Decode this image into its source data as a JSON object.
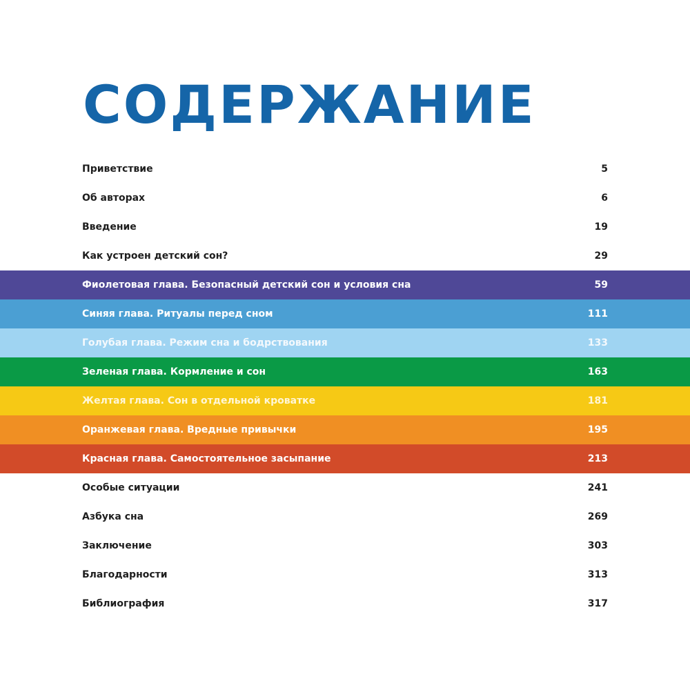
{
  "page": {
    "title": "СОДЕРЖАНИЕ",
    "title_color": "#1565a8",
    "background": "#ffffff"
  },
  "toc": {
    "entries": [
      {
        "label": "Приветствие",
        "page": "5"
      },
      {
        "label": "Об авторах",
        "page": "6"
      },
      {
        "label": "Введение",
        "page": "19"
      },
      {
        "label": "Как устроен детский сон?",
        "page": "29"
      },
      {
        "label": "Фиолетовая глава. Безопасный детский сон и условия сна",
        "page": "59",
        "color": "#4f4897"
      },
      {
        "label": "Синяя глава. Ритуалы перед сном",
        "page": "111",
        "color": "#4b9fd3"
      },
      {
        "label": "Голубая глава. Режим сна и бодрствования",
        "page": "133",
        "color": "#9fd4f2"
      },
      {
        "label": "Зеленая глава. Кормление и сон",
        "page": "163",
        "color": "#0a9a46"
      },
      {
        "label": "Желтая глава. Сон в отдельной кроватке",
        "page": "181",
        "color": "#f6c915"
      },
      {
        "label": "Оранжевая глава. Вредные привычки",
        "page": "195",
        "color": "#f08f23"
      },
      {
        "label": "Красная глава. Самостоятельное засыпание",
        "page": "213",
        "color": "#d24b29"
      },
      {
        "label": "Особые ситуации",
        "page": "241"
      },
      {
        "label": "Азбука сна",
        "page": "269"
      },
      {
        "label": "Заключение",
        "page": "303"
      },
      {
        "label": "Благодарности",
        "page": "313"
      },
      {
        "label": "Библиография",
        "page": "317"
      }
    ]
  }
}
